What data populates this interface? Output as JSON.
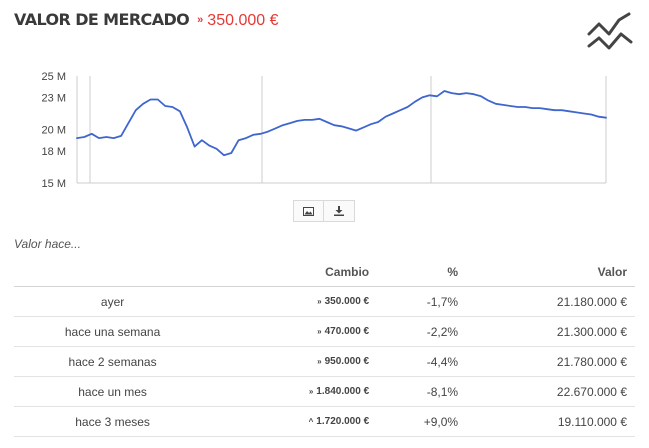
{
  "header": {
    "title": "VALOR DE MERCADO",
    "change_symbol": "»",
    "change_value": "350.000 €"
  },
  "icons": {
    "trend": "trend-lines-icon",
    "image": "image-icon",
    "download": "download-icon"
  },
  "colors": {
    "line": "#3f66cf",
    "negative": "#e53935",
    "positive": "#2e9e3a",
    "grid": "#cccccc"
  },
  "chart_data": {
    "type": "line",
    "title": "",
    "xlabel": "",
    "ylabel": "",
    "ylim": [
      15,
      25
    ],
    "yticks": [
      25,
      23,
      20,
      18,
      15
    ],
    "ytick_labels": [
      "25 M",
      "23 M",
      "20 M",
      "18 M",
      "15 M"
    ],
    "y_unit": "M",
    "grid": "vertical",
    "legend": "none",
    "series": [
      {
        "values": [
          19.2,
          19.3,
          19.6,
          19.2,
          19.3,
          19.2,
          19.4,
          20.6,
          21.8,
          22.4,
          22.8,
          22.8,
          22.2,
          22.1,
          21.7,
          20.2,
          18.4,
          19.0,
          18.5,
          18.2,
          17.6,
          17.8,
          19.0,
          19.2,
          19.5,
          19.6,
          19.8,
          20.1,
          20.4,
          20.6,
          20.8,
          20.9,
          20.9,
          21.0,
          20.7,
          20.4,
          20.3,
          20.1,
          19.9,
          20.2,
          20.5,
          20.7,
          21.2,
          21.5,
          21.8,
          22.1,
          22.6,
          23.0,
          23.2,
          23.1,
          23.6,
          23.4,
          23.3,
          23.4,
          23.3,
          23.1,
          22.7,
          22.4,
          22.3,
          22.2,
          22.1,
          22.1,
          22.0,
          22.0,
          21.9,
          21.8,
          21.8,
          21.7,
          21.6,
          21.5,
          21.4,
          21.2,
          21.1
        ]
      }
    ]
  },
  "history": {
    "label": "Valor hace...",
    "headers": {
      "period": "",
      "change": "Cambio",
      "percent": "%",
      "value": "Valor"
    },
    "rows": [
      {
        "period": "ayer",
        "direction": "down",
        "arrow": "»",
        "change": "350.000 €",
        "percent": "-1,7%",
        "value": "21.180.000 €"
      },
      {
        "period": "hace una semana",
        "direction": "down",
        "arrow": "»",
        "change": "470.000 €",
        "percent": "-2,2%",
        "value": "21.300.000 €"
      },
      {
        "period": "hace 2 semanas",
        "direction": "down",
        "arrow": "»",
        "change": "950.000 €",
        "percent": "-4,4%",
        "value": "21.780.000 €"
      },
      {
        "period": "hace un mes",
        "direction": "down",
        "arrow": "»",
        "change": "1.840.000 €",
        "percent": "-8,1%",
        "value": "22.670.000 €"
      },
      {
        "period": "hace 3 meses",
        "direction": "up",
        "arrow": "^",
        "change": "1.720.000 €",
        "percent": "+9,0%",
        "value": "19.110.000 €"
      }
    ]
  }
}
